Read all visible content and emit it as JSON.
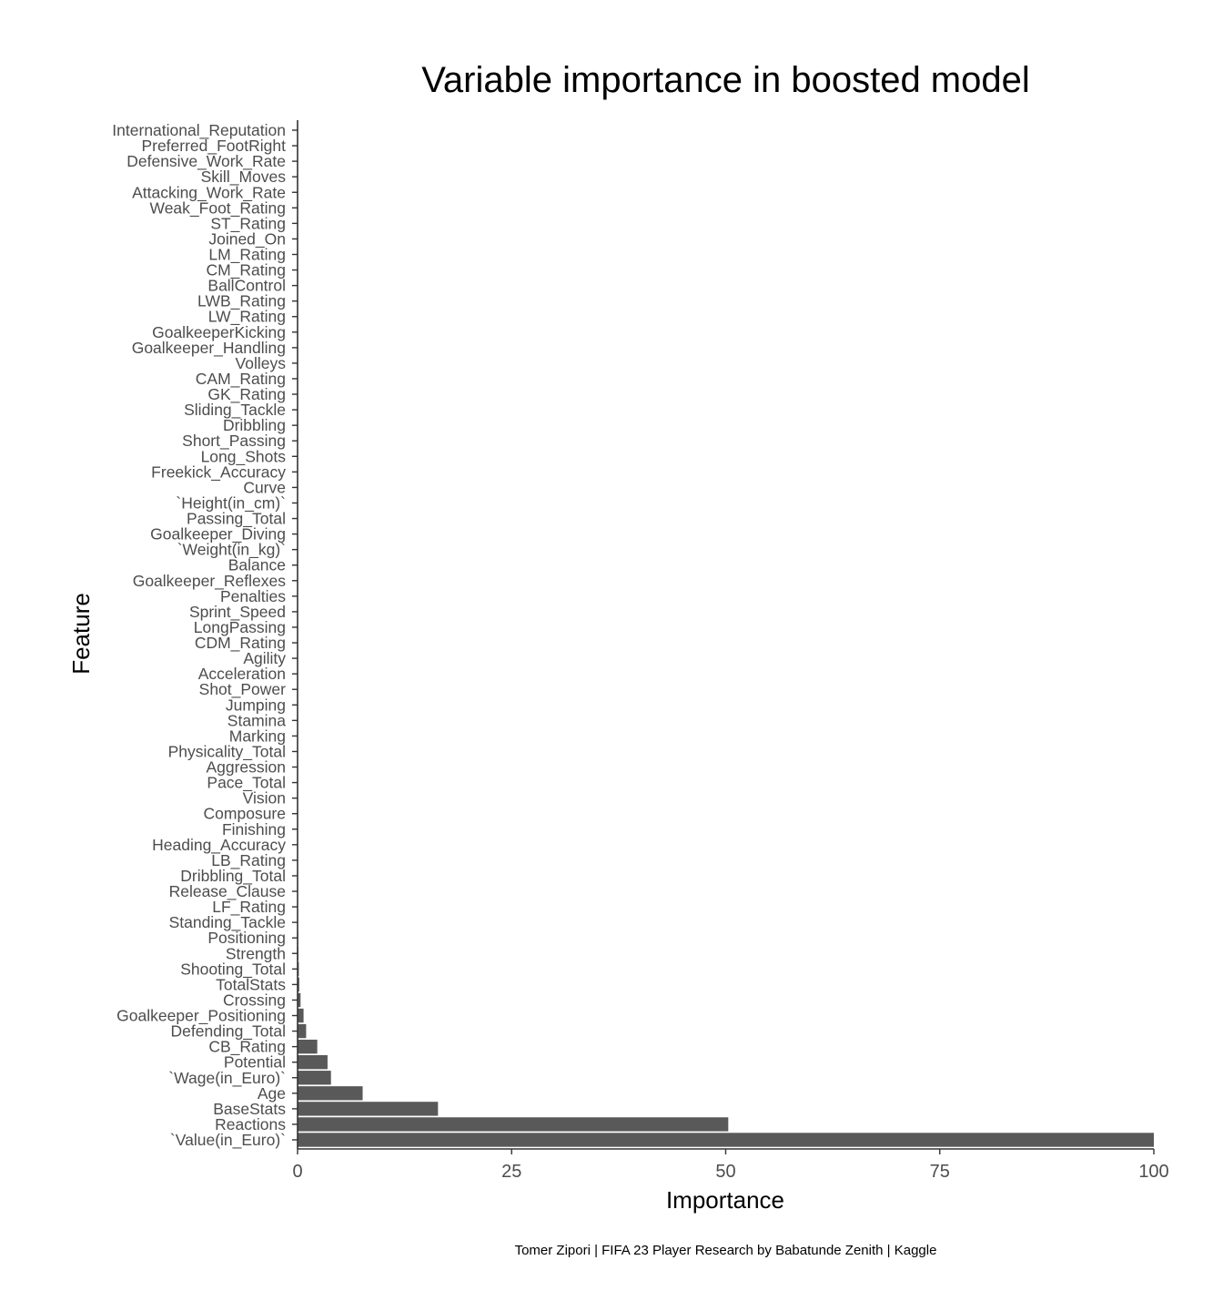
{
  "chart_data": {
    "type": "bar",
    "orientation": "horizontal",
    "title": "Variable importance in boosted model",
    "xlabel": "Importance",
    "ylabel": "Feature",
    "caption": "Tomer Zipori | FIFA 23 Player Research by Babatunde Zenith | Kaggle",
    "xlim": [
      0,
      100
    ],
    "xticks": [
      "0",
      "25",
      "50",
      "75",
      "100"
    ],
    "grid": false,
    "bar_color": "#595959",
    "categories": [
      "International_Reputation",
      "Preferred_FootRight",
      "Defensive_Work_Rate",
      "Skill_Moves",
      "Attacking_Work_Rate",
      "Weak_Foot_Rating",
      "ST_Rating",
      "Joined_On",
      "LM_Rating",
      "CM_Rating",
      "BallControl",
      "LWB_Rating",
      "LW_Rating",
      "GoalkeeperKicking",
      "Goalkeeper_Handling",
      "Volleys",
      "CAM_Rating",
      "GK_Rating",
      "Sliding_Tackle",
      "Dribbling",
      "Short_Passing",
      "Long_Shots",
      "Freekick_Accuracy",
      "Curve",
      "`Height(in_cm)`",
      "Passing_Total",
      "Goalkeeper_Diving",
      "`Weight(in_kg)`",
      "Balance",
      "Goalkeeper_Reflexes",
      "Penalties",
      "Sprint_Speed",
      "LongPassing",
      "CDM_Rating",
      "Agility",
      "Acceleration",
      "Shot_Power",
      "Jumping",
      "Stamina",
      "Marking",
      "Physicality_Total",
      "Aggression",
      "Pace_Total",
      "Vision",
      "Composure",
      "Finishing",
      "Heading_Accuracy",
      "LB_Rating",
      "Dribbling_Total",
      "Release_Clause",
      "LF_Rating",
      "Standing_Tackle",
      "Positioning",
      "Strength",
      "Shooting_Total",
      "TotalStats",
      "Crossing",
      "Goalkeeper_Positioning",
      "Defending_Total",
      "CB_Rating",
      "Potential",
      "`Wage(in_Euro)`",
      "Age",
      "BaseStats",
      "Reactions",
      "`Value(in_Euro)`"
    ],
    "values": [
      0,
      0,
      0,
      0,
      0,
      0,
      0,
      0,
      0,
      0,
      0,
      0,
      0,
      0,
      0,
      0,
      0,
      0,
      0,
      0,
      0,
      0,
      0,
      0,
      0,
      0,
      0,
      0,
      0,
      0,
      0,
      0,
      0,
      0,
      0,
      0,
      0,
      0,
      0,
      0,
      0,
      0,
      0,
      0,
      0,
      0,
      0,
      0.02,
      0.03,
      0.04,
      0.05,
      0.06,
      0.08,
      0.1,
      0.15,
      0.2,
      0.35,
      0.7,
      1.0,
      2.3,
      3.5,
      3.9,
      7.6,
      16.4,
      50.3,
      100
    ]
  }
}
